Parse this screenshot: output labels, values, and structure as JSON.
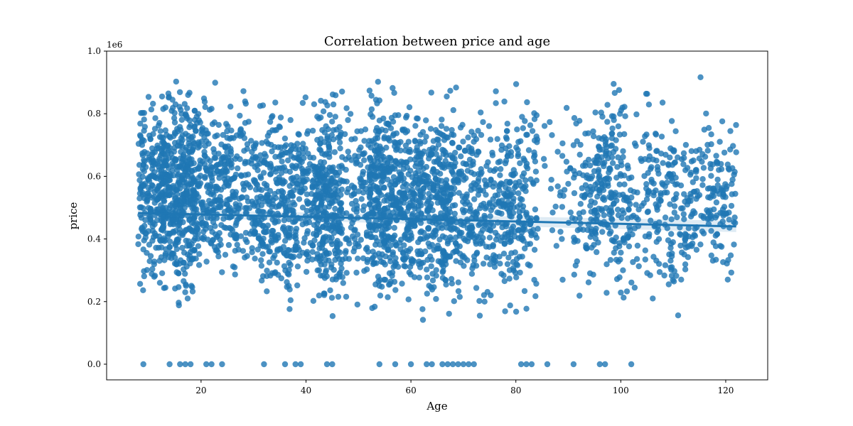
{
  "chart_data": {
    "type": "scatter",
    "title": "Correlation between price and age",
    "xlabel": "Age",
    "ylabel": "price",
    "y_offset_label": "1e6",
    "xlim": [
      2,
      128
    ],
    "ylim": [
      -0.05,
      1.0
    ],
    "x_ticks": [
      20,
      40,
      60,
      80,
      100,
      120
    ],
    "x_tick_labels": [
      "20",
      "40",
      "60",
      "80",
      "100",
      "120"
    ],
    "y_ticks": [
      0.0,
      0.2,
      0.4,
      0.6,
      0.8,
      1.0
    ],
    "y_tick_labels": [
      "0.0",
      "0.2",
      "0.4",
      "0.6",
      "0.8",
      "1.0"
    ],
    "grid": false,
    "point_color": "#1f77b4",
    "zero_price_ages": [
      9,
      14,
      16,
      17,
      18,
      21,
      22,
      24,
      32,
      36,
      38,
      39,
      44,
      45,
      54,
      57,
      60,
      63,
      64,
      66,
      67,
      68,
      69,
      70,
      71,
      72,
      81,
      82,
      83,
      86,
      91,
      96,
      97,
      102
    ],
    "regression": {
      "x": [
        8,
        122
      ],
      "y": [
        0.483,
        0.44
      ]
    },
    "clusters": [
      {
        "x": [
          8,
          12
        ],
        "y": [
          0.16,
          0.93
        ],
        "n": 170
      },
      {
        "x": [
          12,
          19
        ],
        "y": [
          0.13,
          0.96
        ],
        "n": 480
      },
      {
        "x": [
          19,
          26
        ],
        "y": [
          0.17,
          0.95
        ],
        "n": 260
      },
      {
        "x": [
          26,
          30
        ],
        "y": [
          0.18,
          0.93
        ],
        "n": 100
      },
      {
        "x": [
          30,
          38
        ],
        "y": [
          0.08,
          0.95
        ],
        "n": 300
      },
      {
        "x": [
          38,
          42
        ],
        "y": [
          0.15,
          0.93
        ],
        "n": 130
      },
      {
        "x": [
          42,
          47
        ],
        "y": [
          0.1,
          0.95
        ],
        "n": 290
      },
      {
        "x": [
          47,
          52
        ],
        "y": [
          0.09,
          0.95
        ],
        "n": 110
      },
      {
        "x": [
          52,
          57
        ],
        "y": [
          0.09,
          0.96
        ],
        "n": 300
      },
      {
        "x": [
          57,
          65
        ],
        "y": [
          0.08,
          0.95
        ],
        "n": 360
      },
      {
        "x": [
          65,
          70
        ],
        "y": [
          0.08,
          0.94
        ],
        "n": 220
      },
      {
        "x": [
          70,
          76
        ],
        "y": [
          0.1,
          0.9
        ],
        "n": 170
      },
      {
        "x": [
          76,
          80
        ],
        "y": [
          0.09,
          0.93
        ],
        "n": 130
      },
      {
        "x": [
          80,
          84
        ],
        "y": [
          0.1,
          0.95
        ],
        "n": 110
      },
      {
        "x": [
          84,
          91
        ],
        "y": [
          0.25,
          0.9
        ],
        "n": 35
      },
      {
        "x": [
          91,
          95
        ],
        "y": [
          0.11,
          0.92
        ],
        "n": 80
      },
      {
        "x": [
          95,
          99
        ],
        "y": [
          0.2,
          0.94
        ],
        "n": 130
      },
      {
        "x": [
          99,
          106
        ],
        "y": [
          0.08,
          0.95
        ],
        "n": 130
      },
      {
        "x": [
          106,
          114
        ],
        "y": [
          0.08,
          0.96
        ],
        "n": 160
      },
      {
        "x": [
          114,
          122
        ],
        "y": [
          0.16,
          0.93
        ],
        "n": 140
      }
    ]
  }
}
